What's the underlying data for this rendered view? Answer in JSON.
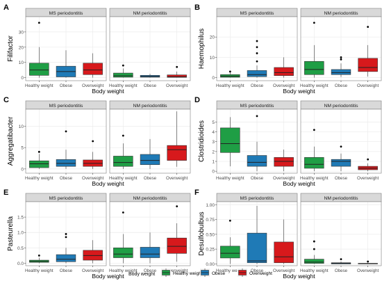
{
  "colors": {
    "healthy": "#1f9e45",
    "obese": "#1f7ab6",
    "overweight": "#d7191c",
    "strip": "#d9d9d9",
    "panel_border": "#7f7f7f",
    "grid": "#ebebeb"
  },
  "legend": {
    "title": "Body weight",
    "items": [
      "Healthy weight",
      "Obese",
      "Overweight"
    ]
  },
  "chart_data": [
    {
      "type": "box",
      "letter": "A",
      "ylabel": "Filifactor",
      "xlabel": "Body weight",
      "ylim": [
        -2,
        40
      ],
      "yticks": [
        0,
        10,
        20,
        30
      ],
      "facets": [
        {
          "title": "MS periodontitis",
          "categories": [
            "Healthy weight",
            "Obese",
            "Overweight"
          ],
          "boxes": [
            {
              "q1": 1.5,
              "median": 5,
              "q3": 9.5,
              "lo": 0,
              "hi": 20,
              "out": [
                36
              ]
            },
            {
              "q1": 0.5,
              "median": 4,
              "q3": 7.5,
              "lo": 0,
              "hi": 18,
              "out": []
            },
            {
              "q1": 2,
              "median": 5,
              "q3": 9.5,
              "lo": 0,
              "hi": 16,
              "out": []
            }
          ]
        },
        {
          "title": "NM periodontitis",
          "categories": [
            "Healthy weight",
            "Obese",
            "Overweight"
          ],
          "boxes": [
            {
              "q1": 0.3,
              "median": 1.2,
              "q3": 3,
              "lo": 0,
              "hi": 6,
              "out": [
                8
              ]
            },
            {
              "q1": 0.3,
              "median": 0.8,
              "q3": 1.5,
              "lo": 0,
              "hi": 2.5,
              "out": []
            },
            {
              "q1": 0.2,
              "median": 0.6,
              "q3": 1.8,
              "lo": 0,
              "hi": 4,
              "out": [
                7
              ]
            }
          ]
        }
      ]
    },
    {
      "type": "box",
      "letter": "B",
      "ylabel": "Haemophilus",
      "xlabel": "Body weight",
      "ylim": [
        -1.5,
        30
      ],
      "yticks": [
        0,
        10,
        20
      ],
      "facets": [
        {
          "title": "MS periodontitis",
          "categories": [
            "Healthy weight",
            "Obese",
            "Overweight"
          ],
          "boxes": [
            {
              "q1": 0.2,
              "median": 0.7,
              "q3": 1.5,
              "lo": 0,
              "hi": 2.5,
              "out": [
                3
              ]
            },
            {
              "q1": 0.5,
              "median": 1.5,
              "q3": 3.5,
              "lo": 0,
              "hi": 6,
              "out": [
                8,
                12,
                15,
                18
              ]
            },
            {
              "q1": 1,
              "median": 2.5,
              "q3": 5,
              "lo": 0,
              "hi": 10,
              "out": []
            }
          ]
        },
        {
          "title": "NM periodontitis",
          "categories": [
            "Healthy weight",
            "Obese",
            "Overweight"
          ],
          "boxes": [
            {
              "q1": 1.5,
              "median": 4,
              "q3": 8,
              "lo": 0,
              "hi": 16,
              "out": [
                27
              ]
            },
            {
              "q1": 1.5,
              "median": 2.5,
              "q3": 4,
              "lo": 0.3,
              "hi": 7,
              "out": [
                9,
                10
              ]
            },
            {
              "q1": 3,
              "median": 5,
              "q3": 9.5,
              "lo": 0.5,
              "hi": 16,
              "out": [
                25
              ]
            }
          ]
        }
      ]
    },
    {
      "type": "box",
      "letter": "C",
      "ylabel": "Aggregatibacter",
      "xlabel": "Body weight",
      "ylim": [
        -1,
        14
      ],
      "yticks": [
        0,
        5,
        10
      ],
      "facets": [
        {
          "title": "MS periodontitis",
          "categories": [
            "Healthy weight",
            "Obese",
            "Overweight"
          ],
          "boxes": [
            {
              "q1": 0.3,
              "median": 1.2,
              "q3": 1.9,
              "lo": 0,
              "hi": 3.5,
              "out": [
                4
              ]
            },
            {
              "q1": 0.6,
              "median": 1.3,
              "q3": 2.2,
              "lo": 0,
              "hi": 4.5,
              "out": [
                8.8
              ]
            },
            {
              "q1": 0.6,
              "median": 1.3,
              "q3": 2.1,
              "lo": 0,
              "hi": 4,
              "out": [
                6.5
              ]
            }
          ]
        },
        {
          "title": "NM periodontitis",
          "categories": [
            "Healthy weight",
            "Obese",
            "Overweight"
          ],
          "boxes": [
            {
              "q1": 0.6,
              "median": 1.5,
              "q3": 3,
              "lo": 0,
              "hi": 6,
              "out": [
                7.8
              ]
            },
            {
              "q1": 1,
              "median": 2,
              "q3": 3.4,
              "lo": 0,
              "hi": 7,
              "out": []
            },
            {
              "q1": 2,
              "median": 4.5,
              "q3": 5.5,
              "lo": 0.5,
              "hi": 13.5,
              "out": []
            }
          ]
        }
      ]
    },
    {
      "type": "box",
      "letter": "D",
      "ylabel": "Clostridioides",
      "xlabel": "Body weight",
      "ylim": [
        -0.2,
        6.3
      ],
      "yticks": [
        0,
        1,
        2,
        3,
        4,
        5
      ],
      "facets": [
        {
          "title": "MS periodontitis",
          "categories": [
            "Healthy weight",
            "Obese",
            "Overweight"
          ],
          "boxes": [
            {
              "q1": 1.9,
              "median": 2.8,
              "q3": 4.4,
              "lo": 0.5,
              "hi": 5.5,
              "out": []
            },
            {
              "q1": 0.5,
              "median": 0.9,
              "q3": 1.6,
              "lo": 0,
              "hi": 3,
              "out": [
                5.6
              ]
            },
            {
              "q1": 0.5,
              "median": 1,
              "q3": 1.4,
              "lo": 0,
              "hi": 2.2,
              "out": []
            }
          ]
        },
        {
          "title": "NM periodontitis",
          "categories": [
            "Healthy weight",
            "Obese",
            "Overweight"
          ],
          "boxes": [
            {
              "q1": 0.3,
              "median": 0.7,
              "q3": 1.4,
              "lo": 0,
              "hi": 2.5,
              "out": [
                4.2
              ]
            },
            {
              "q1": 0.5,
              "median": 1,
              "q3": 1.2,
              "lo": 0,
              "hi": 1.8,
              "out": [
                2.5
              ]
            },
            {
              "q1": 0.15,
              "median": 0.3,
              "q3": 0.5,
              "lo": 0,
              "hi": 0.8,
              "out": [
                1.2
              ]
            }
          ]
        }
      ]
    },
    {
      "type": "box",
      "letter": "E",
      "ylabel": "Pasteurella",
      "xlabel": "Body weight",
      "ylim": [
        -0.08,
        2.0
      ],
      "yticks": [
        0.0,
        0.5,
        1.0,
        1.5
      ],
      "facets": [
        {
          "title": "MS periodontitis",
          "categories": [
            "Healthy weight",
            "Obese",
            "Overweight"
          ],
          "boxes": [
            {
              "q1": 0.03,
              "median": 0.06,
              "q3": 0.1,
              "lo": 0,
              "hi": 0.18,
              "out": [
                0.25
              ]
            },
            {
              "q1": 0.05,
              "median": 0.13,
              "q3": 0.28,
              "lo": 0,
              "hi": 0.5,
              "out": [
                0.85,
                0.95
              ]
            },
            {
              "q1": 0.1,
              "median": 0.25,
              "q3": 0.42,
              "lo": 0,
              "hi": 0.75,
              "out": []
            }
          ]
        },
        {
          "title": "NM periodontitis",
          "categories": [
            "Healthy weight",
            "Obese",
            "Overweight"
          ],
          "boxes": [
            {
              "q1": 0.18,
              "median": 0.3,
              "q3": 0.5,
              "lo": 0,
              "hi": 0.95,
              "out": [
                1.65
              ]
            },
            {
              "q1": 0.18,
              "median": 0.3,
              "q3": 0.52,
              "lo": 0,
              "hi": 1.0,
              "out": []
            },
            {
              "q1": 0.32,
              "median": 0.55,
              "q3": 0.82,
              "lo": 0.05,
              "hi": 1.3,
              "out": [
                1.85
              ]
            }
          ]
        }
      ]
    },
    {
      "type": "box",
      "letter": "F",
      "ylabel": "Desulfobulbus",
      "xlabel": "Body weight",
      "ylim": [
        -0.03,
        1.05
      ],
      "yticks": [
        0.0,
        0.25,
        0.5,
        0.75,
        1.0
      ],
      "yticklabels": [
        "0.00",
        "0.25",
        "0.50",
        "0.75",
        "1.00"
      ],
      "facets": [
        {
          "title": "MS periodontitis",
          "categories": [
            "Healthy weight",
            "Obese",
            "Overweight"
          ],
          "boxes": [
            {
              "q1": 0.1,
              "median": 0.18,
              "q3": 0.3,
              "lo": 0,
              "hi": 0.45,
              "out": [
                0.73
              ]
            },
            {
              "q1": 0.02,
              "median": 0.05,
              "q3": 0.52,
              "lo": 0,
              "hi": 0.98,
              "out": []
            },
            {
              "q1": 0.02,
              "median": 0.12,
              "q3": 0.37,
              "lo": 0,
              "hi": 0.75,
              "out": []
            }
          ]
        },
        {
          "title": "NM periodontitis",
          "categories": [
            "Healthy weight",
            "Obese",
            "Overweight"
          ],
          "boxes": [
            {
              "q1": 0.01,
              "median": 0.03,
              "q3": 0.08,
              "lo": 0,
              "hi": 0.15,
              "out": [
                0.25,
                0.38
              ]
            },
            {
              "q1": 0,
              "median": 0.01,
              "q3": 0.02,
              "lo": 0,
              "hi": 0.04,
              "out": [
                0.08
              ]
            },
            {
              "q1": 0,
              "median": 0.005,
              "q3": 0.01,
              "lo": 0,
              "hi": 0.02,
              "out": [
                0.04
              ]
            }
          ]
        }
      ]
    }
  ]
}
